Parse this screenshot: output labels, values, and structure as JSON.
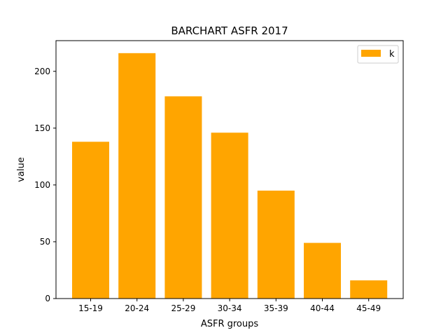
{
  "chart_data": {
    "type": "bar",
    "title": "BARCHART ASFR 2017",
    "xlabel": "ASFR groups",
    "ylabel": "value",
    "categories": [
      "15-19",
      "20-24",
      "25-29",
      "30-34",
      "35-39",
      "40-44",
      "45-49"
    ],
    "series": [
      {
        "name": "k",
        "color": "#ffa500",
        "values": [
          138,
          216,
          178,
          146,
          95,
          49,
          16
        ]
      }
    ],
    "ylim": [
      0,
      227
    ],
    "yticks": [
      0,
      50,
      100,
      150,
      200
    ],
    "grid": false,
    "legend_position": "top-right"
  }
}
